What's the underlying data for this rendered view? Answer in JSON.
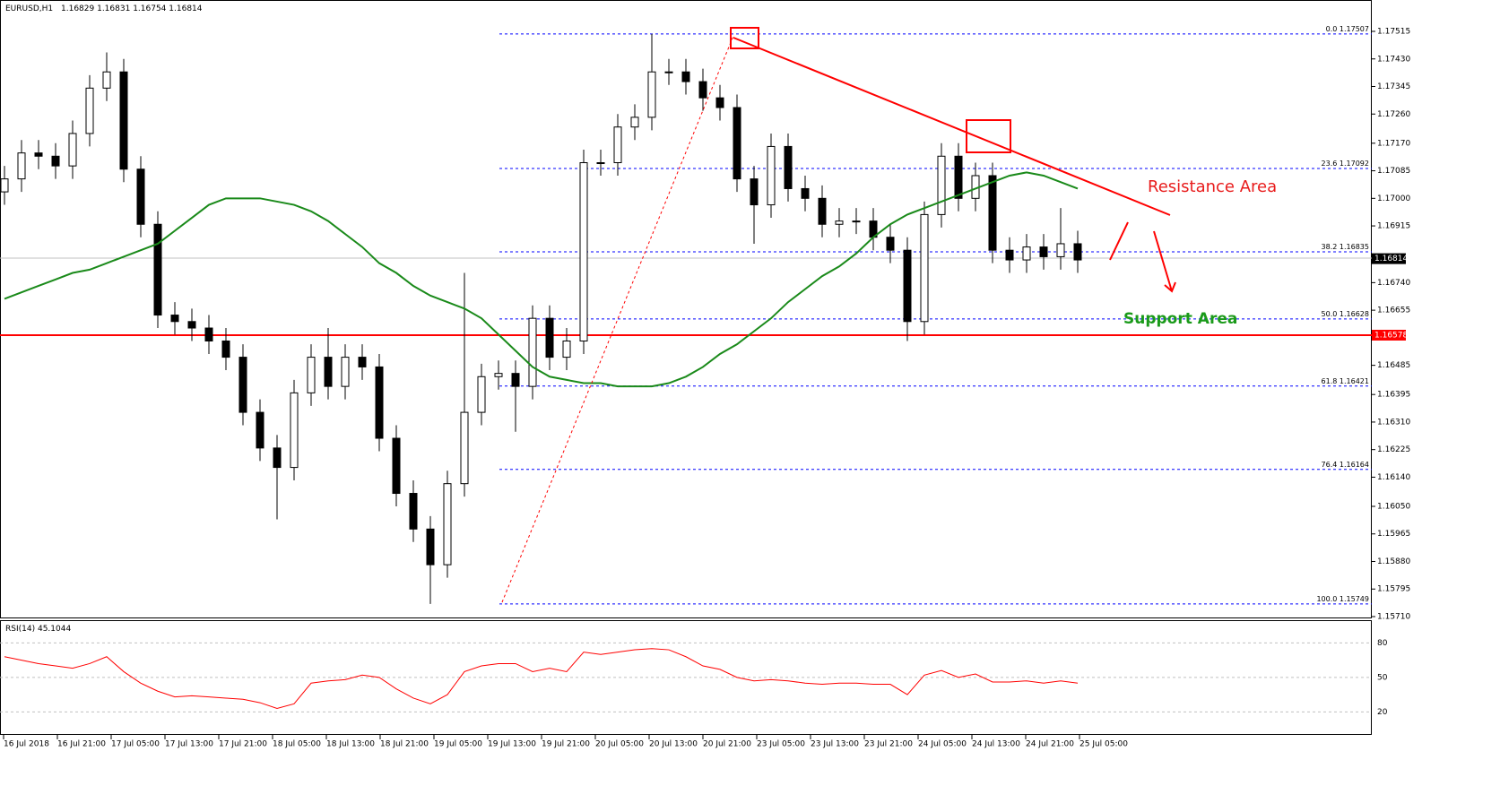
{
  "chart_data": [
    {
      "type": "candlestick",
      "title": "EURUSD,H1",
      "header_values": [
        1.16829,
        1.16831,
        1.16754,
        1.16814
      ],
      "open": [
        1.1702,
        1.1706,
        1.1714,
        1.1713,
        1.171,
        1.172,
        1.1734,
        1.1739,
        1.1709,
        1.1692,
        1.1664,
        1.1662,
        1.166,
        1.1656,
        1.1651,
        1.1634,
        1.1623,
        1.1617,
        1.164,
        1.1651,
        1.1642,
        1.1651,
        1.1648,
        1.1626,
        1.1609,
        1.1598,
        1.1587,
        1.1612,
        1.1634,
        1.1645,
        1.1646,
        1.1642,
        1.1663,
        1.1651,
        1.1656,
        1.1711,
        1.1711,
        1.1722,
        1.1725,
        1.1739,
        1.1739,
        1.1736,
        1.1731,
        1.1728,
        1.1706,
        1.1698,
        1.1716,
        1.1703,
        1.17,
        1.1692,
        1.1693,
        1.1693,
        1.1688,
        1.1684,
        1.1662,
        1.1695,
        1.1713,
        1.17,
        1.1707,
        1.1684,
        1.1681,
        1.1685,
        1.1682,
        1.1686
      ],
      "high": [
        1.171,
        1.1718,
        1.1718,
        1.1717,
        1.1724,
        1.1738,
        1.1745,
        1.1743,
        1.1713,
        1.1696,
        1.1668,
        1.1666,
        1.1664,
        1.166,
        1.1655,
        1.1638,
        1.1627,
        1.1644,
        1.1655,
        1.166,
        1.1655,
        1.1655,
        1.1652,
        1.163,
        1.1613,
        1.1602,
        1.1616,
        1.1677,
        1.1649,
        1.165,
        1.165,
        1.1667,
        1.1667,
        1.166,
        1.1715,
        1.1715,
        1.1726,
        1.1729,
        1.17507,
        1.1743,
        1.1743,
        1.174,
        1.1735,
        1.1732,
        1.171,
        1.172,
        1.172,
        1.1707,
        1.1704,
        1.1697,
        1.1697,
        1.1697,
        1.1692,
        1.1688,
        1.1699,
        1.1717,
        1.1717,
        1.1711,
        1.1711,
        1.1688,
        1.1689,
        1.1689,
        1.1697,
        1.169
      ],
      "low": [
        1.1698,
        1.1702,
        1.1709,
        1.1706,
        1.1706,
        1.1716,
        1.173,
        1.1705,
        1.1688,
        1.166,
        1.1658,
        1.1656,
        1.1652,
        1.1647,
        1.163,
        1.1619,
        1.1601,
        1.1613,
        1.1636,
        1.1638,
        1.1638,
        1.1644,
        1.1622,
        1.1605,
        1.1594,
        1.15749,
        1.1583,
        1.1608,
        1.163,
        1.1641,
        1.1628,
        1.1638,
        1.1647,
        1.1647,
        1.1652,
        1.1707,
        1.1707,
        1.1718,
        1.1721,
        1.1735,
        1.1732,
        1.1727,
        1.1724,
        1.1702,
        1.1686,
        1.1694,
        1.1699,
        1.1696,
        1.1688,
        1.1688,
        1.1689,
        1.1684,
        1.168,
        1.1656,
        1.1658,
        1.1691,
        1.1696,
        1.1696,
        1.168,
        1.1677,
        1.1677,
        1.1678,
        1.1678,
        1.1677
      ],
      "close": [
        1.1706,
        1.1714,
        1.1713,
        1.171,
        1.172,
        1.1734,
        1.1739,
        1.1709,
        1.1692,
        1.1664,
        1.1662,
        1.166,
        1.1656,
        1.1651,
        1.1634,
        1.1623,
        1.1617,
        1.164,
        1.1651,
        1.1642,
        1.1651,
        1.1648,
        1.1626,
        1.1609,
        1.1598,
        1.1587,
        1.1612,
        1.1634,
        1.1645,
        1.1646,
        1.1642,
        1.1663,
        1.1651,
        1.1656,
        1.1711,
        1.1711,
        1.1722,
        1.1725,
        1.1739,
        1.1739,
        1.1736,
        1.1731,
        1.1728,
        1.1706,
        1.1698,
        1.1716,
        1.1703,
        1.17,
        1.1692,
        1.1693,
        1.1693,
        1.1688,
        1.1684,
        1.1662,
        1.1695,
        1.1713,
        1.17,
        1.1707,
        1.1684,
        1.1681,
        1.1685,
        1.1682,
        1.1686,
        1.1681
      ],
      "moving_average": {
        "color": "#1a8a1a",
        "values": [
          1.1669,
          1.1671,
          1.1673,
          1.1675,
          1.1677,
          1.1678,
          1.168,
          1.1682,
          1.1684,
          1.1686,
          1.169,
          1.1694,
          1.1698,
          1.17,
          1.17,
          1.17,
          1.1699,
          1.1698,
          1.1696,
          1.1693,
          1.1689,
          1.1685,
          1.168,
          1.1677,
          1.1673,
          1.167,
          1.1668,
          1.1666,
          1.1663,
          1.1658,
          1.1653,
          1.1648,
          1.1645,
          1.1644,
          1.1643,
          1.1643,
          1.1642,
          1.1642,
          1.1642,
          1.1643,
          1.1645,
          1.1648,
          1.1652,
          1.1655,
          1.1659,
          1.1663,
          1.1668,
          1.1672,
          1.1676,
          1.1679,
          1.1683,
          1.1688,
          1.1692,
          1.1695,
          1.1697,
          1.1699,
          1.1701,
          1.1703,
          1.1705,
          1.1707,
          1.1708,
          1.1707,
          1.1705,
          1.1703
        ]
      },
      "ylim": [
        1.1571,
        1.17515
      ],
      "yticks": [
        1.17515,
        {
          "value": 1.1743,
          "label": "1.17430"
        },
        1.17345,
        {
          "value": 1.1726,
          "label": "1.17260"
        },
        {
          "value": 1.1717,
          "label": "1.17170"
        },
        1.17085,
        {
          "value": 1.17,
          "label": "1.17000"
        },
        1.16915,
        {
          "value": 1.1674,
          "label": "1.16740"
        },
        1.16655,
        1.16485,
        1.16395,
        {
          "value": 1.1631,
          "label": "1.16310"
        },
        1.16225,
        {
          "value": 1.1614,
          "label": "1.16140"
        },
        {
          "value": 1.1605,
          "label": "1.16050"
        },
        1.15965,
        {
          "value": 1.1588,
          "label": "1.15880"
        },
        1.15795,
        {
          "value": 1.1571,
          "label": "1.15710"
        }
      ],
      "categories": [
        "16 Jul 2018",
        "16 Jul 21:00",
        "17 Jul 05:00",
        "17 Jul 13:00",
        "17 Jul 21:00",
        "18 Jul 05:00",
        "18 Jul 13:00",
        "18 Jul 21:00",
        "19 Jul 05:00",
        "19 Jul 13:00",
        "19 Jul 21:00",
        "20 Jul 05:00",
        "20 Jul 13:00",
        "20 Jul 21:00",
        "23 Jul 05:00",
        "23 Jul 13:00",
        "23 Jul 21:00",
        "24 Jul 05:00",
        "24 Jul 13:00",
        "24 Jul 21:00",
        "25 Jul 05:00"
      ],
      "fib_levels": [
        {
          "level": "0.0",
          "price": 1.17507
        },
        {
          "level": "23.6",
          "price": 1.17092
        },
        {
          "level": "38.2",
          "price": 1.16835
        },
        {
          "level": "50.0",
          "price": 1.16628
        },
        {
          "level": "61.8",
          "price": 1.16421
        },
        {
          "level": "76.4",
          "price": 1.16164
        },
        {
          "level": "100.0",
          "price": 1.15749
        }
      ],
      "current_price": 1.16814,
      "support_price": 1.16578,
      "annotations": [
        "Resistance Area",
        "Support Area"
      ]
    },
    {
      "type": "line",
      "title": "RSI(14)",
      "last_value": 45.1044,
      "color": "#ff0000",
      "values": [
        68,
        65,
        62,
        60,
        58,
        62,
        68,
        55,
        45,
        38,
        33,
        34,
        33,
        32,
        31,
        28,
        23,
        27,
        45,
        47,
        48,
        52,
        50,
        40,
        32,
        27,
        35,
        55,
        60,
        62,
        62,
        55,
        58,
        55,
        72,
        70,
        72,
        74,
        75,
        74,
        68,
        60,
        57,
        50,
        47,
        48,
        47,
        45,
        44,
        45,
        45,
        44,
        44,
        35,
        52,
        56,
        50,
        53,
        46,
        46,
        47,
        45,
        47,
        45
      ],
      "ylim": [
        0,
        100
      ],
      "yticks": [
        80,
        50,
        20
      ]
    }
  ]
}
